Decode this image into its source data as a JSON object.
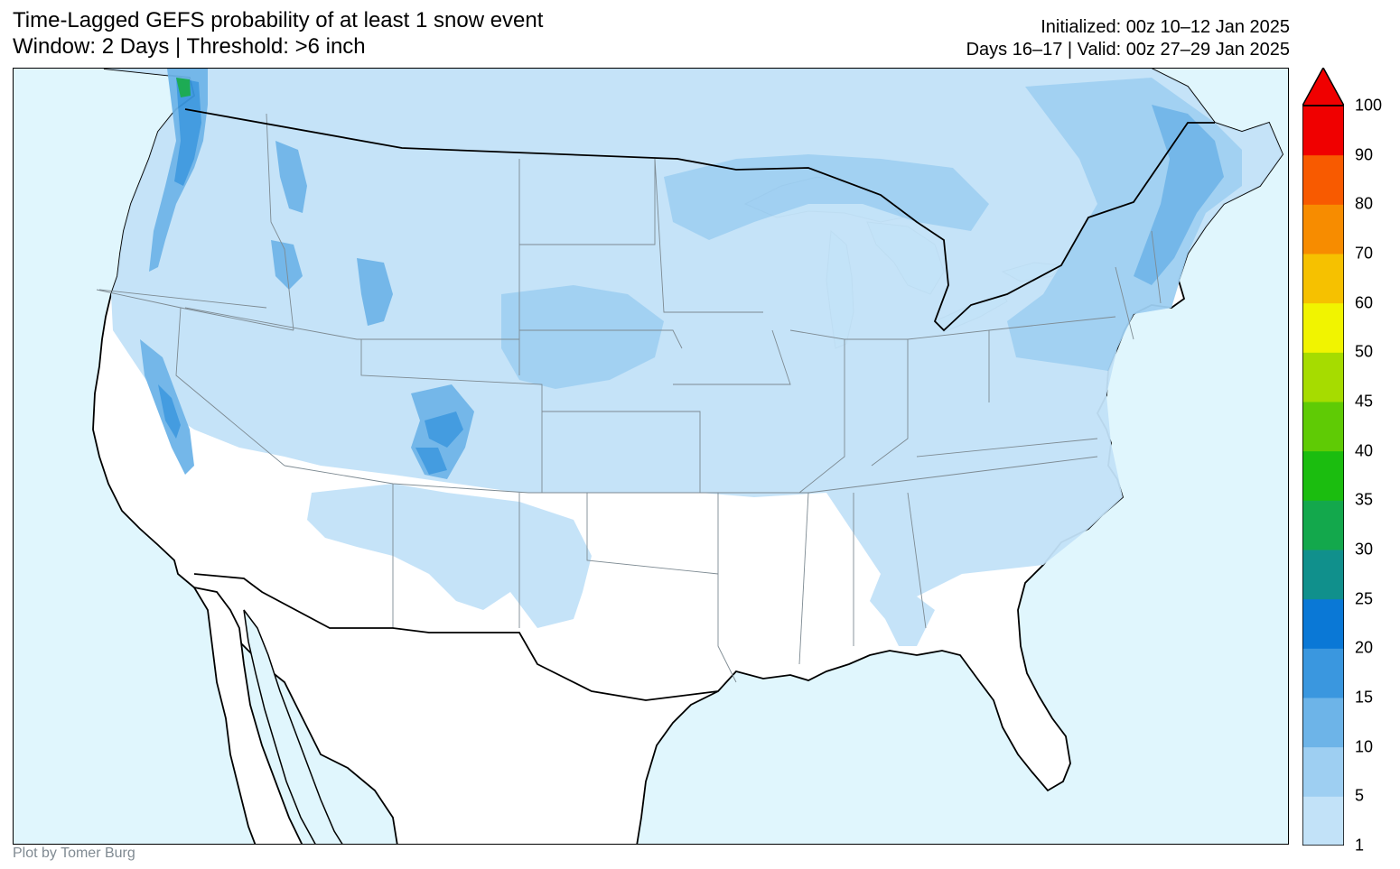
{
  "title": {
    "line1": "Time-Lagged GEFS probability of at least 1 snow event",
    "line2": "Window: 2 Days | Threshold: >6 inch"
  },
  "info": {
    "initialized": "Initialized: 00z 10–12 Jan 2025",
    "valid": "Days 16–17 | Valid: 00z 27–29 Jan 2025"
  },
  "credit": "Plot by Tomer Burg",
  "colorbar": {
    "levels": [
      1,
      5,
      10,
      15,
      20,
      25,
      30,
      35,
      40,
      45,
      50,
      60,
      70,
      80,
      90,
      100
    ],
    "labels": [
      "1",
      "5",
      "10",
      "15",
      "20",
      "25",
      "30",
      "35",
      "40",
      "45",
      "50",
      "60",
      "70",
      "80",
      "90",
      "100"
    ],
    "colors": [
      "#c2e2f8",
      "#9ecff2",
      "#6db4e8",
      "#3a97df",
      "#0a78d6",
      "#10908c",
      "#13a84c",
      "#1bbd0f",
      "#5fcb05",
      "#a6dc00",
      "#f1f400",
      "#f6c100",
      "#f78c00",
      "#f85a00",
      "#f00000"
    ],
    "extend": "max"
  },
  "map": {
    "region": "CONUS",
    "ocean_color": "#e0f6fd",
    "land_color": "#ffffff"
  }
}
